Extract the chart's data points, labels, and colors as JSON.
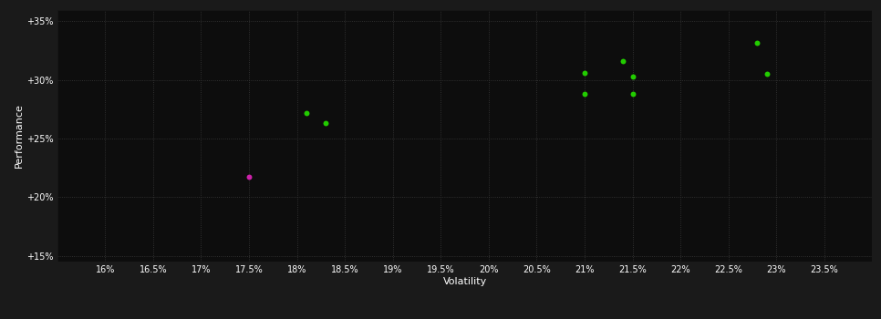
{
  "xlabel": "Volatility",
  "ylabel": "Performance",
  "background_color": "#1a1a1a",
  "plot_bg_color": "#0d0d0d",
  "grid_color": "#3a3a3a",
  "text_color": "#ffffff",
  "xlim": [
    0.155,
    0.24
  ],
  "ylim": [
    0.145,
    0.36
  ],
  "xticks": [
    0.16,
    0.165,
    0.17,
    0.175,
    0.18,
    0.185,
    0.19,
    0.195,
    0.2,
    0.205,
    0.21,
    0.215,
    0.22,
    0.225,
    0.23,
    0.235
  ],
  "yticks": [
    0.15,
    0.2,
    0.25,
    0.3,
    0.35
  ],
  "green_points": [
    [
      0.181,
      0.272
    ],
    [
      0.183,
      0.263
    ],
    [
      0.21,
      0.306
    ],
    [
      0.21,
      0.288
    ],
    [
      0.214,
      0.316
    ],
    [
      0.215,
      0.303
    ],
    [
      0.215,
      0.288
    ],
    [
      0.228,
      0.332
    ],
    [
      0.229,
      0.305
    ]
  ],
  "magenta_points": [
    [
      0.175,
      0.217
    ]
  ],
  "green_color": "#22cc00",
  "magenta_color": "#cc22aa",
  "point_size": 18,
  "tick_fontsize": 7,
  "label_fontsize": 8
}
